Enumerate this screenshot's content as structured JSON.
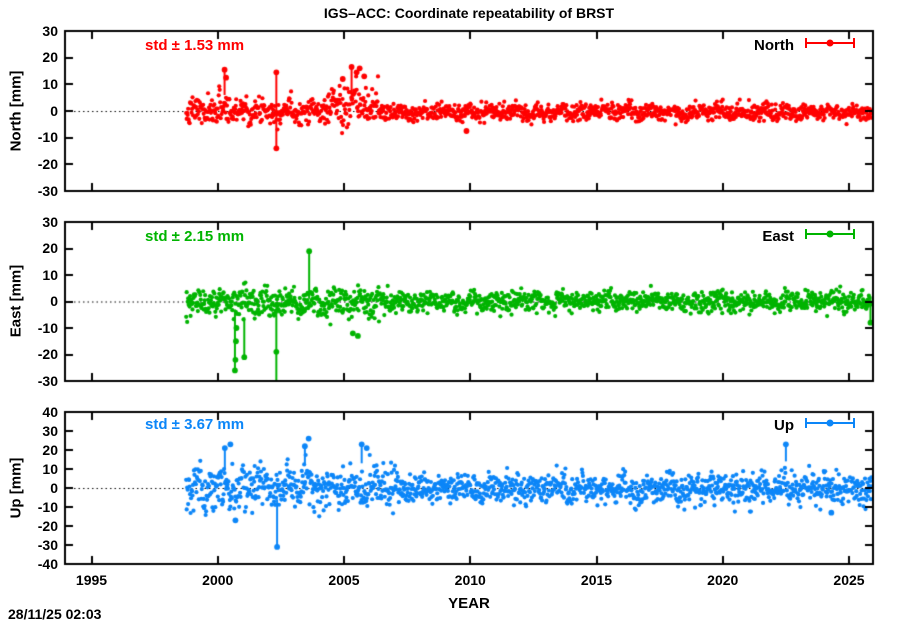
{
  "window": {
    "timestamp": "28/11/25 02:03"
  },
  "chart_data": {
    "type": "scatter",
    "title": "IGS–ACC: Coordinate repeatability of BRST",
    "xlabel": "YEAR",
    "x_range": [
      1993.95,
      2025.95
    ],
    "x_ticks": [
      1995,
      2000,
      2005,
      2010,
      2015,
      2020,
      2025
    ],
    "data_start": 1998.75,
    "data_end": 2025.92,
    "sample_step_years": 0.01923,
    "grid": false,
    "legend_position": "top-right-inside",
    "zero_line": "dotted-black",
    "panels": [
      {
        "name": "North",
        "ylabel": "North [mm]",
        "legend": "North",
        "std_label": "std ± 1.53 mm",
        "std_mm": 1.53,
        "color": "#ff0000",
        "ylim": [
          -30,
          30
        ],
        "yticks": [
          30,
          20,
          10,
          0,
          -10,
          -20,
          -30
        ],
        "noise_segments": [
          {
            "from": 1998.75,
            "to": 2000.05,
            "std": 2.4,
            "bias": -0.2,
            "wander": 1.0
          },
          {
            "from": 2000.05,
            "to": 2000.5,
            "std": 3.2,
            "bias": 1.5,
            "wander": 1.2
          },
          {
            "from": 2000.5,
            "to": 2004.35,
            "std": 2.3,
            "bias": 0.2,
            "wander": 1.1
          },
          {
            "from": 2004.35,
            "to": 2006.35,
            "std": 3.6,
            "bias": 1.8,
            "wander": 1.6
          },
          {
            "from": 2006.35,
            "to": 2025.92,
            "std": 1.5,
            "bias": -0.4,
            "wander": 0.7
          }
        ],
        "outliers": [
          {
            "x": 2000.27,
            "y": 15.5,
            "bar": [
              6,
              15.5
            ]
          },
          {
            "x": 2000.33,
            "y": 12.5
          },
          {
            "x": 2002.32,
            "y": -14,
            "bar": [
              -14,
              14.5
            ],
            "y2": 14.5
          },
          {
            "x": 2004.95,
            "y": 12
          },
          {
            "x": 2005.3,
            "y": 16.5,
            "bar": [
              5,
              16.5
            ]
          },
          {
            "x": 2005.5,
            "y": 14.5
          },
          {
            "x": 2005.62,
            "y": 16
          },
          {
            "x": 2005.8,
            "y": 13
          },
          {
            "x": 2009.85,
            "y": -7.5
          }
        ]
      },
      {
        "name": "East",
        "ylabel": "East [mm]",
        "legend": "East",
        "std_label": "std ± 2.15 mm",
        "std_mm": 2.15,
        "color": "#00b400",
        "ylim": [
          -30,
          30
        ],
        "yticks": [
          30,
          20,
          10,
          0,
          -10,
          -20,
          -30
        ],
        "noise_segments": [
          {
            "from": 1998.75,
            "to": 2000.1,
            "std": 2.6,
            "bias": 0,
            "wander": 1.2
          },
          {
            "from": 2000.1,
            "to": 2006.5,
            "std": 2.7,
            "bias": -0.3,
            "wander": 1.3
          },
          {
            "from": 2006.5,
            "to": 2025.92,
            "std": 1.9,
            "bias": 0,
            "wander": 0.8
          }
        ],
        "outliers": [
          {
            "x": 2000.68,
            "y": -26,
            "bar": [
              -26,
              -3
            ]
          },
          {
            "x": 2000.7,
            "y": -22
          },
          {
            "x": 2000.72,
            "y": -15
          },
          {
            "x": 2000.74,
            "y": -10
          },
          {
            "x": 2001.05,
            "y": -21,
            "bar": [
              -21,
              -6
            ]
          },
          {
            "x": 2002.32,
            "y": -19,
            "bar": [
              -31,
              -1
            ]
          },
          {
            "x": 2003.62,
            "y": 19,
            "bar": [
              1,
              19
            ]
          },
          {
            "x": 2005.35,
            "y": -12
          },
          {
            "x": 2005.55,
            "y": -13
          },
          {
            "x": 2025.85,
            "y": -8,
            "bar": [
              -8,
              2
            ]
          }
        ]
      },
      {
        "name": "Up",
        "ylabel": "Up [mm]",
        "legend": "Up",
        "std_label": "std ± 3.67 mm",
        "std_mm": 3.67,
        "color": "#0c86f8",
        "ylim": [
          -40,
          40
        ],
        "yticks": [
          40,
          30,
          20,
          10,
          0,
          -10,
          -20,
          -30,
          -40
        ],
        "noise_segments": [
          {
            "from": 1998.75,
            "to": 2007.0,
            "std": 5.6,
            "bias": 0,
            "wander": 2.2
          },
          {
            "from": 2007.0,
            "to": 2025.92,
            "std": 3.9,
            "bias": -0.3,
            "wander": 1.6
          }
        ],
        "outliers": [
          {
            "x": 2000.28,
            "y": 21,
            "bar": [
              10,
              21
            ]
          },
          {
            "x": 2000.5,
            "y": 23
          },
          {
            "x": 2000.7,
            "y": -17
          },
          {
            "x": 2002.35,
            "y": -31,
            "bar": [
              -31,
              -6
            ]
          },
          {
            "x": 2003.45,
            "y": 22,
            "bar": [
              12,
              22
            ]
          },
          {
            "x": 2003.6,
            "y": 26
          },
          {
            "x": 2005.7,
            "y": 23,
            "bar": [
              13,
              23
            ]
          },
          {
            "x": 2005.9,
            "y": 21
          },
          {
            "x": 2022.5,
            "y": 23,
            "bar": [
              14,
              23
            ]
          },
          {
            "x": 2024.3,
            "y": -13
          }
        ]
      }
    ]
  }
}
